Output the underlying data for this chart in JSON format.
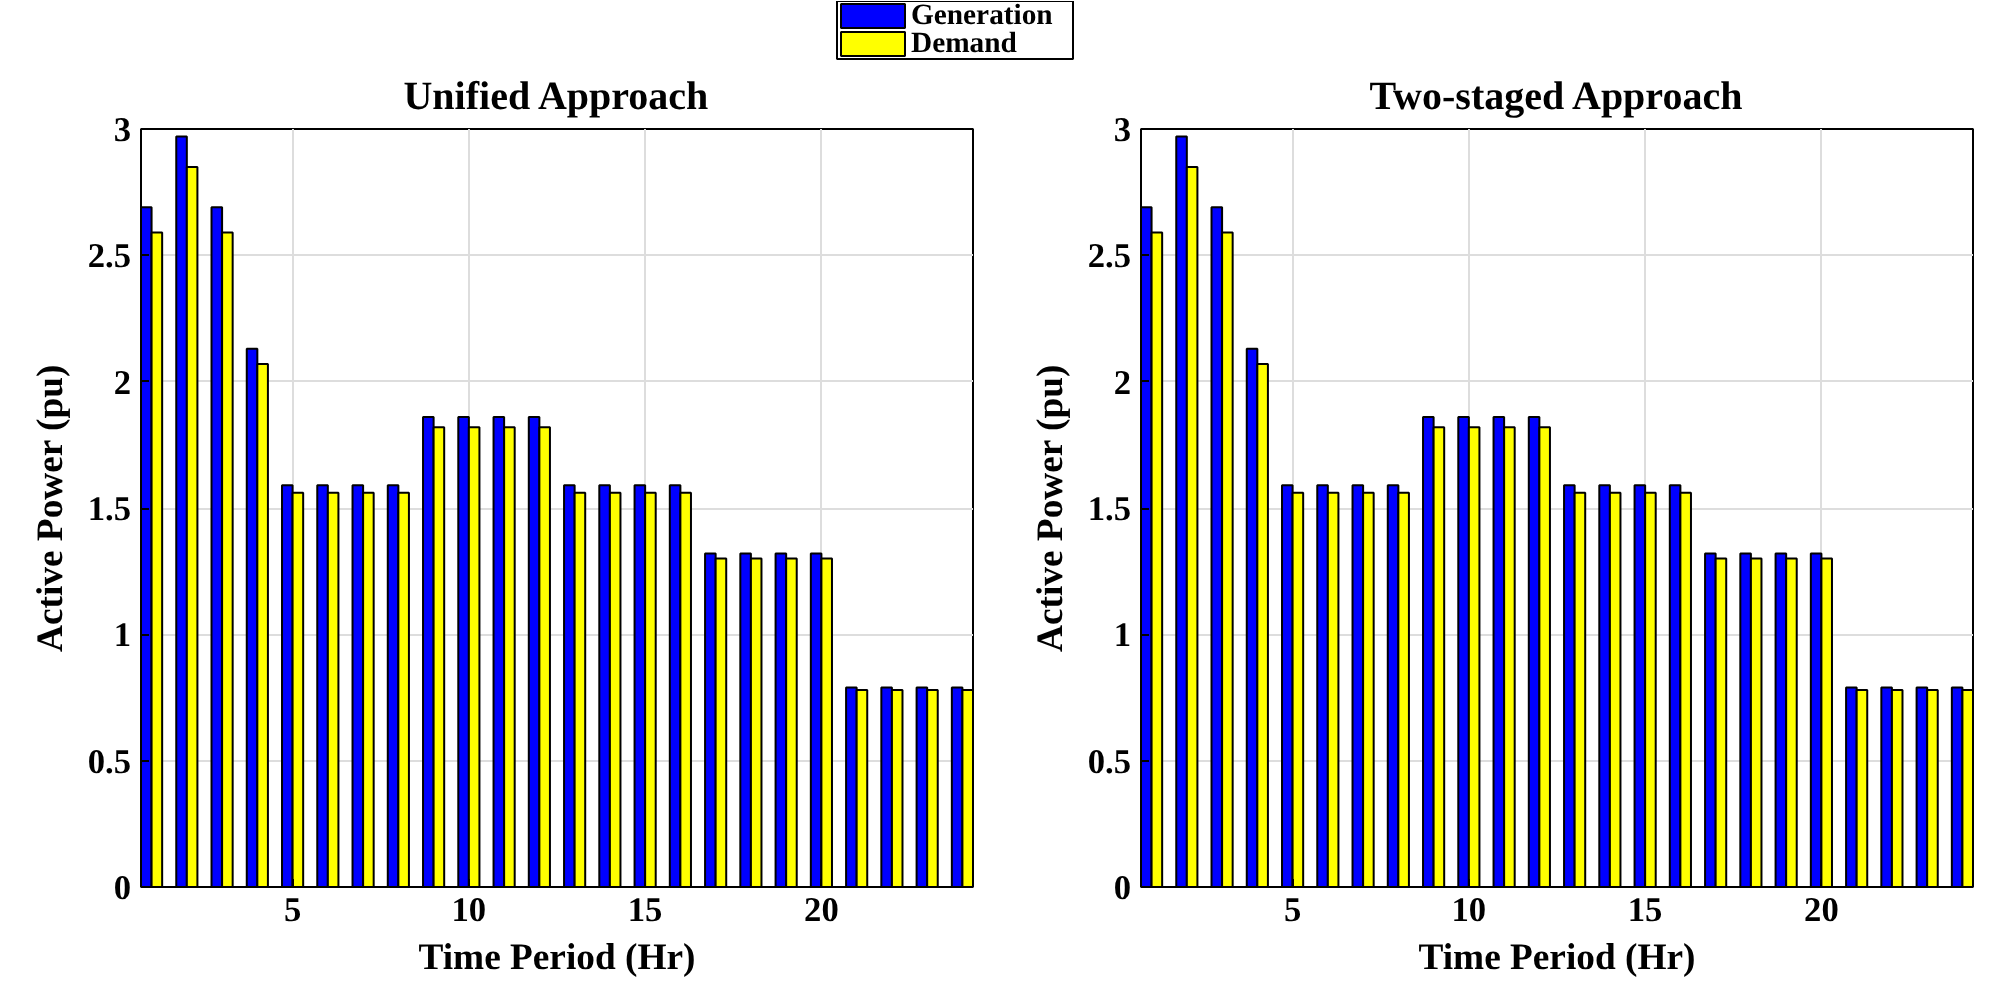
{
  "chart_data": [
    {
      "type": "bar",
      "title": "Unified Approach",
      "xlabel": "Time Period (Hr)",
      "ylabel": "Active Power (pu)",
      "x": [
        1,
        2,
        3,
        4,
        5,
        6,
        7,
        8,
        9,
        10,
        11,
        12,
        13,
        14,
        15,
        16,
        17,
        18,
        19,
        20,
        21,
        22,
        23,
        24
      ],
      "series": [
        {
          "name": "Generation",
          "color": "#0000ff",
          "values": [
            2.69,
            2.97,
            2.69,
            2.13,
            1.59,
            1.59,
            1.59,
            1.59,
            1.86,
            1.86,
            1.86,
            1.86,
            1.59,
            1.59,
            1.59,
            1.59,
            1.32,
            1.32,
            1.32,
            1.32,
            0.79,
            0.79,
            0.79,
            0.79
          ]
        },
        {
          "name": "Demand",
          "color": "#ffff00",
          "values": [
            2.59,
            2.85,
            2.59,
            2.07,
            1.56,
            1.56,
            1.56,
            1.56,
            1.82,
            1.82,
            1.82,
            1.82,
            1.56,
            1.56,
            1.56,
            1.56,
            1.3,
            1.3,
            1.3,
            1.3,
            0.78,
            0.78,
            0.78,
            0.78
          ]
        }
      ],
      "xlim": [
        0.7,
        24.3
      ],
      "xticks": [
        5,
        10,
        15,
        20
      ],
      "ylim": [
        0,
        3
      ],
      "yticks": [
        0,
        0.5,
        1,
        1.5,
        2,
        2.5,
        3
      ],
      "grid": true,
      "legend": "top"
    },
    {
      "type": "bar",
      "title": "Two-staged Approach",
      "xlabel": "Time Period (Hr)",
      "ylabel": "Active Power (pu)",
      "x": [
        1,
        2,
        3,
        4,
        5,
        6,
        7,
        8,
        9,
        10,
        11,
        12,
        13,
        14,
        15,
        16,
        17,
        18,
        19,
        20,
        21,
        22,
        23,
        24
      ],
      "series": [
        {
          "color": "#0000ff",
          "values": [
            2.69,
            2.97,
            2.69,
            2.13,
            1.59,
            1.59,
            1.59,
            1.59,
            1.86,
            1.86,
            1.86,
            1.86,
            1.59,
            1.59,
            1.59,
            1.59,
            1.32,
            1.32,
            1.32,
            1.32,
            0.79,
            0.79,
            0.79,
            0.79
          ]
        },
        {
          "color": "#ffff00",
          "values": [
            2.59,
            2.85,
            2.59,
            2.07,
            1.56,
            1.56,
            1.56,
            1.56,
            1.82,
            1.82,
            1.82,
            1.82,
            1.56,
            1.56,
            1.56,
            1.56,
            1.3,
            1.3,
            1.3,
            1.3,
            0.78,
            0.78,
            0.78,
            0.78
          ]
        }
      ],
      "xlim": [
        0.7,
        24.3
      ],
      "xticks": [
        5,
        10,
        15,
        20
      ],
      "ylim": [
        0,
        3
      ],
      "yticks": [
        0,
        0.5,
        1,
        1.5,
        2,
        2.5,
        3
      ],
      "grid": true
    }
  ]
}
